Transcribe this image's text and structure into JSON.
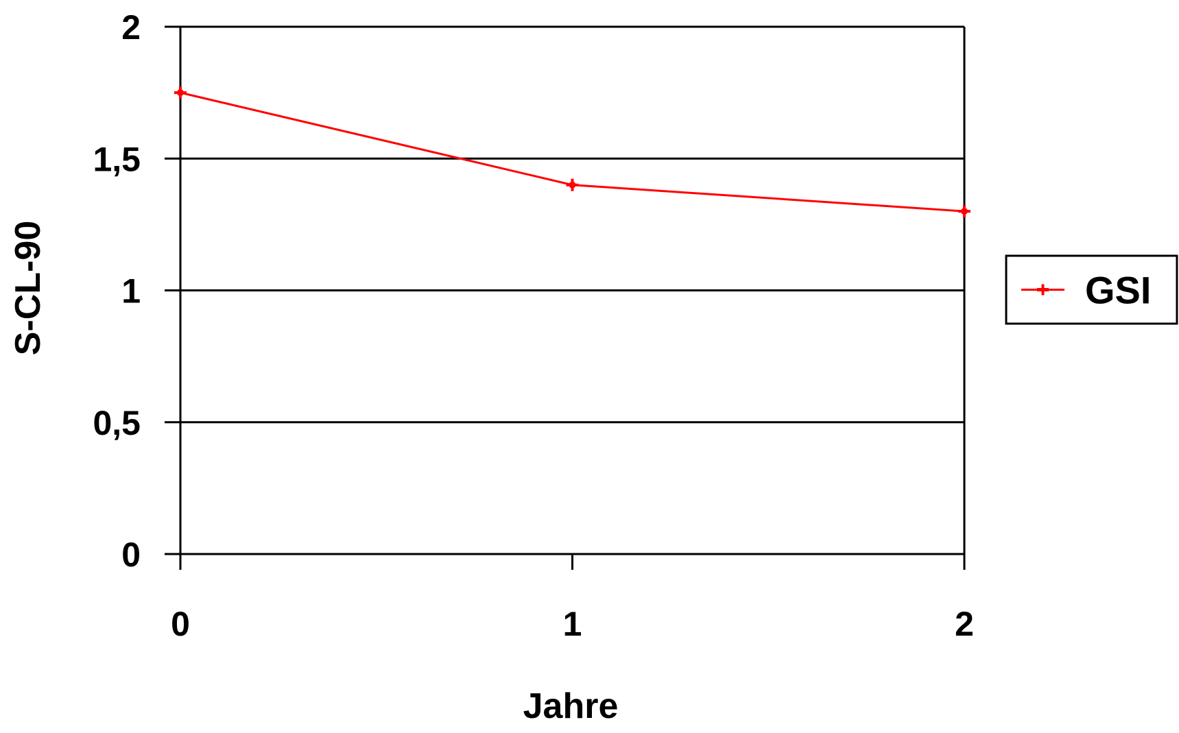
{
  "chart_data": {
    "type": "line",
    "title": "",
    "xlabel": "Jahre",
    "ylabel": "S-CL-90",
    "x": [
      0,
      1,
      2
    ],
    "x_tick_labels": [
      "0",
      "1",
      "2"
    ],
    "y_ticks": [
      0,
      0.5,
      1,
      1.5,
      2
    ],
    "y_tick_labels": [
      "0",
      "0,5",
      "1",
      "1,5",
      "2"
    ],
    "xlim": [
      0,
      2
    ],
    "ylim": [
      0,
      2
    ],
    "grid": "horizontal",
    "legend_position": "right",
    "series": [
      {
        "name": "GSI",
        "color": "#ff0000",
        "values": [
          1.75,
          1.4,
          1.3
        ]
      }
    ]
  }
}
